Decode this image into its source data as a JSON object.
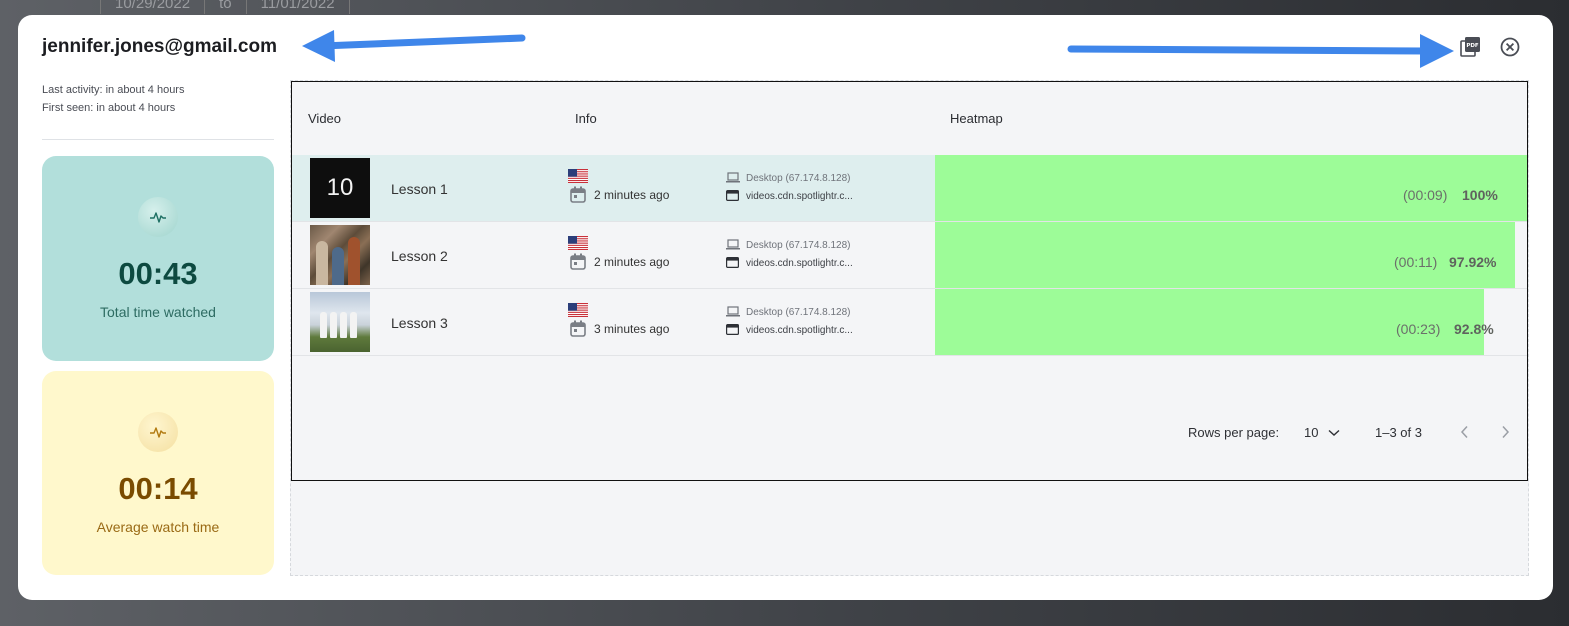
{
  "background": {
    "date_from": "10/29/2022",
    "to_label": "to",
    "date_to": "11/01/2022"
  },
  "header": {
    "email": "jennifer.jones@gmail.com",
    "last_activity": "Last activity: in about 4 hours",
    "first_seen": "First seen: in about 4 hours",
    "pdf_icon": "pdf-icon",
    "close_icon": "close-icon"
  },
  "stats": {
    "total": {
      "value": "00:43",
      "label": "Total time watched",
      "icon": "activity-icon",
      "color": "#b2dfdb"
    },
    "average": {
      "value": "00:14",
      "label": "Average watch time",
      "icon": "activity-icon",
      "color": "#fff8cc"
    }
  },
  "table": {
    "columns": [
      "Video",
      "Info",
      "Heatmap"
    ],
    "rows": [
      {
        "lesson": "Lesson 1",
        "thumb_text": "10",
        "country_flag": "us-flag-icon",
        "time_ago": "2 minutes ago",
        "device": "Desktop (67.174.8.128)",
        "source": "videos.cdn.spotlightr.c...",
        "heat_time": "(00:09)",
        "heat_pct": "100%",
        "heat_fill": 1.0
      },
      {
        "lesson": "Lesson 2",
        "thumb_text": "",
        "country_flag": "us-flag-icon",
        "time_ago": "2 minutes ago",
        "device": "Desktop (67.174.8.128)",
        "source": "videos.cdn.spotlightr.c...",
        "heat_time": "(00:11)",
        "heat_pct": "97.92%",
        "heat_fill": 0.9792
      },
      {
        "lesson": "Lesson 3",
        "thumb_text": "",
        "country_flag": "us-flag-icon",
        "time_ago": "3 minutes ago",
        "device": "Desktop (67.174.8.128)",
        "source": "videos.cdn.spotlightr.c...",
        "heat_time": "(00:23)",
        "heat_pct": "92.8%",
        "heat_fill": 0.928
      }
    ],
    "heat_color": "#9dfc98"
  },
  "pagination": {
    "rows_per_page_label": "Rows per page:",
    "rows_per_page_value": "10",
    "range": "1–3 of 3"
  },
  "annotations": {
    "arrow_color": "#3f86ea"
  }
}
